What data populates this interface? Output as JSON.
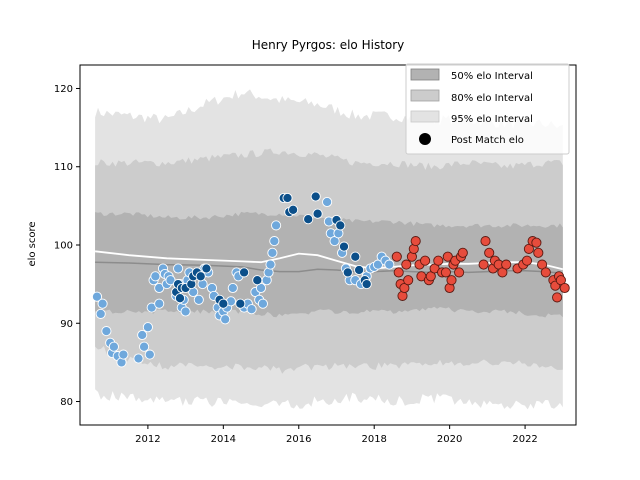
{
  "chart_data": {
    "type": "scatter",
    "title": "Henry Pyrgos: elo History",
    "xlabel": "",
    "ylabel": "elo score",
    "xlim": [
      2010.2,
      2023.35
    ],
    "ylim": [
      77,
      123
    ],
    "x_ticks": [
      2012,
      2014,
      2016,
      2018,
      2020,
      2022
    ],
    "y_ticks": [
      80,
      90,
      100,
      110,
      120
    ],
    "legend_position": "top-right",
    "legend": {
      "i50": "50% elo Interval",
      "i80": "80% elo Interval",
      "i95": "95% elo Interval",
      "post": "Post Match elo"
    },
    "colors": {
      "band50": "#b2b2b2",
      "band80": "#cccccc",
      "band95": "#e3e3e3",
      "median_line": "#8c8c8c",
      "mean_line": "#ffffff",
      "period1": "#6fa8dc",
      "period2": "#0b4f8a",
      "period3": "#e74c3c"
    },
    "bands": {
      "x": [
        2010.6,
        2011.5,
        2012.5,
        2013.5,
        2014.5,
        2015.5,
        2016.5,
        2017.5,
        2018.5,
        2019.5,
        2020.5,
        2021.5,
        2022.5,
        2023.0
      ],
      "p95_high": [
        117,
        116.5,
        116,
        118,
        119.5,
        118.5,
        118,
        116.5,
        116.5,
        116,
        116,
        115.5,
        115.5,
        115
      ],
      "p80_high": [
        110.5,
        110.5,
        110.5,
        111,
        111.5,
        112,
        111.5,
        110.5,
        110.5,
        110,
        110.5,
        110,
        110.5,
        110.5
      ],
      "p50_high": [
        104,
        104,
        103.5,
        103.5,
        104,
        104,
        103.5,
        103,
        103,
        102.5,
        102.5,
        102.5,
        102.5,
        102.5
      ],
      "p50_low": [
        91.5,
        91.5,
        91.5,
        91.5,
        91.5,
        91,
        91.5,
        91.5,
        91.5,
        92,
        91.5,
        91.5,
        91,
        91
      ],
      "p80_low": [
        87,
        85.5,
        84.5,
        84.5,
        84.5,
        84,
        84.5,
        84.5,
        84.5,
        85,
        85,
        85,
        84.5,
        84
      ],
      "p95_low": [
        81,
        80.5,
        80,
        80,
        79.5,
        79.5,
        80,
        80.5,
        80,
        80.5,
        80,
        79.5,
        79.5,
        79.5
      ]
    },
    "lines": {
      "x": [
        2010.6,
        2011.5,
        2012.5,
        2013.5,
        2014.5,
        2015.0,
        2015.5,
        2016.0,
        2016.5,
        2017.0,
        2017.5,
        2018.0,
        2018.5,
        2019.0,
        2019.5,
        2020.0,
        2020.5,
        2021.0,
        2021.5,
        2022.0,
        2022.5,
        2023.0
      ],
      "median": [
        97.8,
        97.7,
        97.5,
        97.4,
        97.2,
        96.8,
        96.6,
        96.6,
        96.9,
        96.8,
        96.6,
        96.6,
        96.7,
        96.6,
        96.5,
        96.6,
        96.5,
        96.6,
        96.7,
        96.7,
        96.6,
        96.4
      ],
      "mean": [
        99.2,
        98.7,
        98.3,
        98.1,
        97.9,
        97.8,
        98.3,
        98.9,
        98.7,
        98.0,
        97.3,
        97.0,
        97.2,
        97.4,
        97.5,
        97.6,
        97.6,
        97.7,
        97.8,
        97.8,
        97.5,
        96.9
      ]
    },
    "series": [
      {
        "period": 1,
        "points": [
          [
            2010.65,
            93.4
          ],
          [
            2010.75,
            91.2
          ],
          [
            2010.8,
            92.5
          ],
          [
            2010.9,
            89.0
          ],
          [
            2011.0,
            87.5
          ],
          [
            2011.05,
            86.2
          ],
          [
            2011.1,
            87.0
          ],
          [
            2011.2,
            85.8
          ],
          [
            2011.3,
            85.0
          ],
          [
            2011.35,
            86.0
          ],
          [
            2011.75,
            85.5
          ],
          [
            2011.85,
            88.5
          ],
          [
            2011.9,
            87.0
          ],
          [
            2012.0,
            89.5
          ],
          [
            2012.05,
            86.0
          ],
          [
            2012.1,
            92.0
          ],
          [
            2012.15,
            95.5
          ],
          [
            2012.2,
            96.0
          ],
          [
            2012.3,
            94.5
          ],
          [
            2012.3,
            92.5
          ],
          [
            2012.4,
            97.0
          ],
          [
            2012.45,
            96.3
          ],
          [
            2012.5,
            95.0
          ],
          [
            2012.55,
            96.0
          ],
          [
            2012.6,
            95.5
          ],
          [
            2012.75,
            93.5
          ],
          [
            2012.8,
            97.0
          ],
          [
            2012.85,
            95.0
          ],
          [
            2012.9,
            92.0
          ],
          [
            2012.95,
            93.0
          ],
          [
            2013.0,
            91.5
          ],
          [
            2013.05,
            95.5
          ],
          [
            2013.1,
            96.5
          ],
          [
            2013.2,
            94.0
          ],
          [
            2013.3,
            96.5
          ],
          [
            2013.35,
            93.0
          ],
          [
            2013.45,
            95.0
          ],
          [
            2013.5,
            97.0
          ],
          [
            2013.6,
            96.5
          ],
          [
            2013.7,
            94.5
          ],
          [
            2013.75,
            93.5
          ],
          [
            2013.85,
            92.0
          ],
          [
            2013.9,
            91.0
          ],
          [
            2014.0,
            91.5
          ],
          [
            2014.05,
            90.5
          ],
          [
            2014.1,
            92.0
          ],
          [
            2014.2,
            92.8
          ],
          [
            2014.25,
            94.5
          ],
          [
            2014.35,
            96.5
          ],
          [
            2014.4,
            96.0
          ],
          [
            2014.55,
            92.0
          ],
          [
            2014.65,
            92.5
          ],
          [
            2014.75,
            91.8
          ],
          [
            2014.85,
            94.0
          ],
          [
            2014.95,
            93.0
          ],
          [
            2015.0,
            94.5
          ],
          [
            2015.05,
            92.5
          ],
          [
            2015.15,
            95.5
          ],
          [
            2015.2,
            96.5
          ],
          [
            2015.25,
            97.5
          ],
          [
            2015.3,
            99.0
          ],
          [
            2015.35,
            100.5
          ],
          [
            2015.4,
            102.5
          ],
          [
            2016.75,
            105.5
          ],
          [
            2016.8,
            103.0
          ],
          [
            2016.85,
            101.5
          ],
          [
            2016.95,
            100.5
          ],
          [
            2017.05,
            101.5
          ],
          [
            2017.15,
            99.0
          ],
          [
            2017.25,
            97.0
          ],
          [
            2017.35,
            95.5
          ],
          [
            2017.5,
            95.5
          ],
          [
            2017.65,
            95.0
          ],
          [
            2017.8,
            96.0
          ],
          [
            2017.9,
            97.0
          ],
          [
            2018.0,
            97.2
          ],
          [
            2018.1,
            97.5
          ],
          [
            2018.2,
            98.5
          ],
          [
            2018.3,
            98.0
          ],
          [
            2018.4,
            97.5
          ]
        ]
      },
      {
        "period": 2,
        "points": [
          [
            2012.75,
            94.0
          ],
          [
            2012.8,
            95.0
          ],
          [
            2012.85,
            93.2
          ],
          [
            2012.9,
            94.5
          ],
          [
            2013.0,
            94.5
          ],
          [
            2013.15,
            95.0
          ],
          [
            2013.2,
            96.0
          ],
          [
            2013.3,
            96.5
          ],
          [
            2013.4,
            96.0
          ],
          [
            2013.55,
            97.0
          ],
          [
            2013.9,
            93.0
          ],
          [
            2014.0,
            92.5
          ],
          [
            2014.45,
            92.5
          ],
          [
            2014.55,
            96.5
          ],
          [
            2014.9,
            95.5
          ],
          [
            2015.6,
            106.0
          ],
          [
            2015.7,
            106.0
          ],
          [
            2015.75,
            104.2
          ],
          [
            2015.85,
            104.5
          ],
          [
            2016.25,
            103.3
          ],
          [
            2016.45,
            106.2
          ],
          [
            2016.5,
            104.0
          ],
          [
            2017.0,
            103.2
          ],
          [
            2017.1,
            102.5
          ],
          [
            2017.2,
            99.8
          ],
          [
            2017.3,
            96.5
          ],
          [
            2017.5,
            98.5
          ],
          [
            2017.6,
            96.8
          ],
          [
            2017.75,
            95.5
          ],
          [
            2017.8,
            95.0
          ]
        ]
      },
      {
        "period": 3,
        "points": [
          [
            2018.6,
            98.5
          ],
          [
            2018.65,
            96.5
          ],
          [
            2018.7,
            95.0
          ],
          [
            2018.75,
            93.5
          ],
          [
            2018.8,
            94.5
          ],
          [
            2018.85,
            97.5
          ],
          [
            2018.9,
            95.5
          ],
          [
            2019.0,
            98.5
          ],
          [
            2019.05,
            99.5
          ],
          [
            2019.1,
            100.5
          ],
          [
            2019.2,
            97.5
          ],
          [
            2019.25,
            96.0
          ],
          [
            2019.35,
            98.0
          ],
          [
            2019.45,
            95.5
          ],
          [
            2019.5,
            96.0
          ],
          [
            2019.6,
            97.0
          ],
          [
            2019.7,
            98.0
          ],
          [
            2019.8,
            96.5
          ],
          [
            2019.9,
            96.5
          ],
          [
            2019.95,
            98.5
          ],
          [
            2020.0,
            94.5
          ],
          [
            2020.05,
            95.5
          ],
          [
            2020.1,
            97.5
          ],
          [
            2020.15,
            98.0
          ],
          [
            2020.25,
            96.5
          ],
          [
            2020.3,
            98.5
          ],
          [
            2020.35,
            99.0
          ],
          [
            2020.9,
            97.5
          ],
          [
            2020.95,
            100.5
          ],
          [
            2021.05,
            99.0
          ],
          [
            2021.15,
            97.0
          ],
          [
            2021.2,
            98.0
          ],
          [
            2021.3,
            97.5
          ],
          [
            2021.4,
            96.5
          ],
          [
            2021.5,
            97.5
          ],
          [
            2021.8,
            97.0
          ],
          [
            2021.95,
            97.5
          ],
          [
            2022.05,
            98.0
          ],
          [
            2022.1,
            99.5
          ],
          [
            2022.2,
            100.5
          ],
          [
            2022.3,
            100.3
          ],
          [
            2022.35,
            99.0
          ],
          [
            2022.45,
            97.5
          ],
          [
            2022.55,
            96.5
          ],
          [
            2022.75,
            95.5
          ],
          [
            2022.8,
            94.8
          ],
          [
            2022.85,
            93.3
          ],
          [
            2022.9,
            96.0
          ],
          [
            2022.95,
            95.5
          ],
          [
            2023.05,
            94.5
          ]
        ]
      }
    ]
  }
}
